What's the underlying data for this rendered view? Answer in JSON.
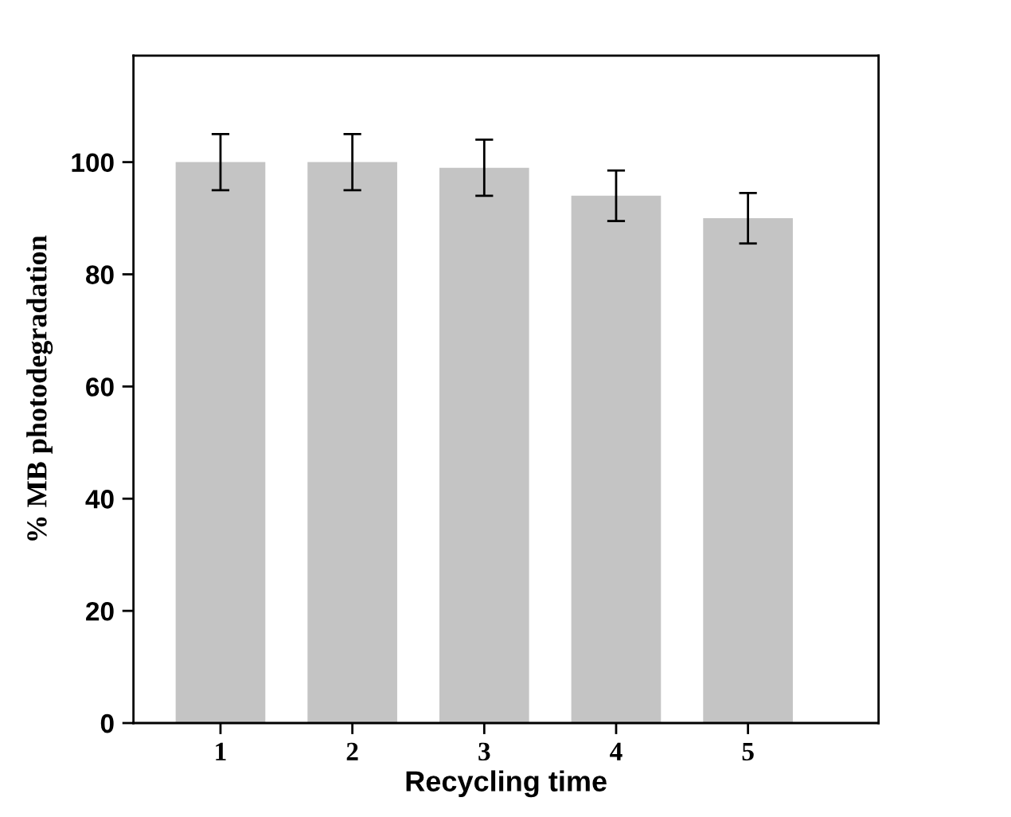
{
  "chart_data": {
    "type": "bar",
    "xlabel": "Recycling time",
    "ylabel": "% MB photodegradation",
    "categories": [
      "1",
      "2",
      "3",
      "4",
      "5"
    ],
    "values": [
      100,
      100,
      99,
      94,
      90
    ],
    "errors": [
      5,
      5,
      5,
      4.5,
      4.5
    ],
    "color": "#c4c4c4",
    "ylim": [
      0,
      119
    ],
    "yticks": [
      0,
      20,
      40,
      60,
      80,
      100
    ],
    "grid": false
  }
}
